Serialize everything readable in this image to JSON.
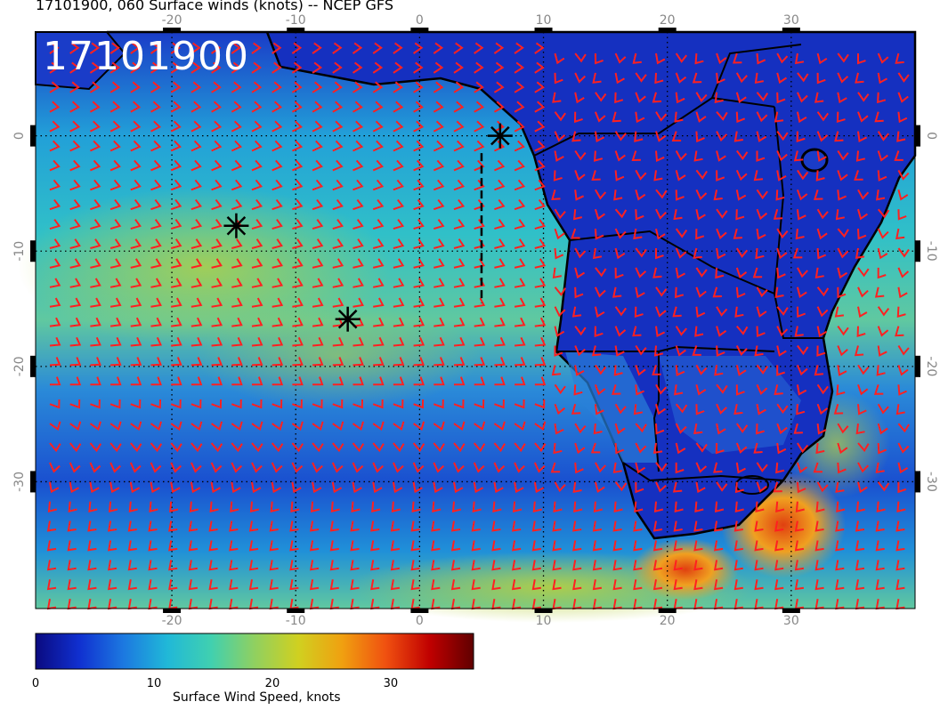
{
  "title": "17101900, 060 Surface winds (knots) -- NCEP GFS",
  "stamp": "17101900",
  "map": {
    "lon_min": -31,
    "lon_max": 40,
    "lat_min": -41,
    "lat_max": 9,
    "lon_ticks": [
      -20,
      -10,
      0,
      10,
      20,
      30
    ],
    "lat_ticks": [
      0,
      -10,
      -20,
      -30
    ],
    "grid": "dotted",
    "barb_color": "#ff2020",
    "coast_color": "#000000",
    "markers": [
      {
        "lon": 6.5,
        "lat": 0.0
      },
      {
        "lon": -14.8,
        "lat": -7.8
      },
      {
        "lon": -5.8,
        "lat": -15.9
      }
    ]
  },
  "colorbar": {
    "title": "Surface Wind Speed, knots",
    "min": 0,
    "max": 37,
    "ticks": [
      0,
      10,
      20,
      30
    ],
    "colors": [
      "#0a0a80",
      "#1030d0",
      "#1c78e0",
      "#20b8d8",
      "#40d0b0",
      "#90d060",
      "#d0d020",
      "#f0a010",
      "#f05010",
      "#c00000",
      "#600000"
    ]
  }
}
